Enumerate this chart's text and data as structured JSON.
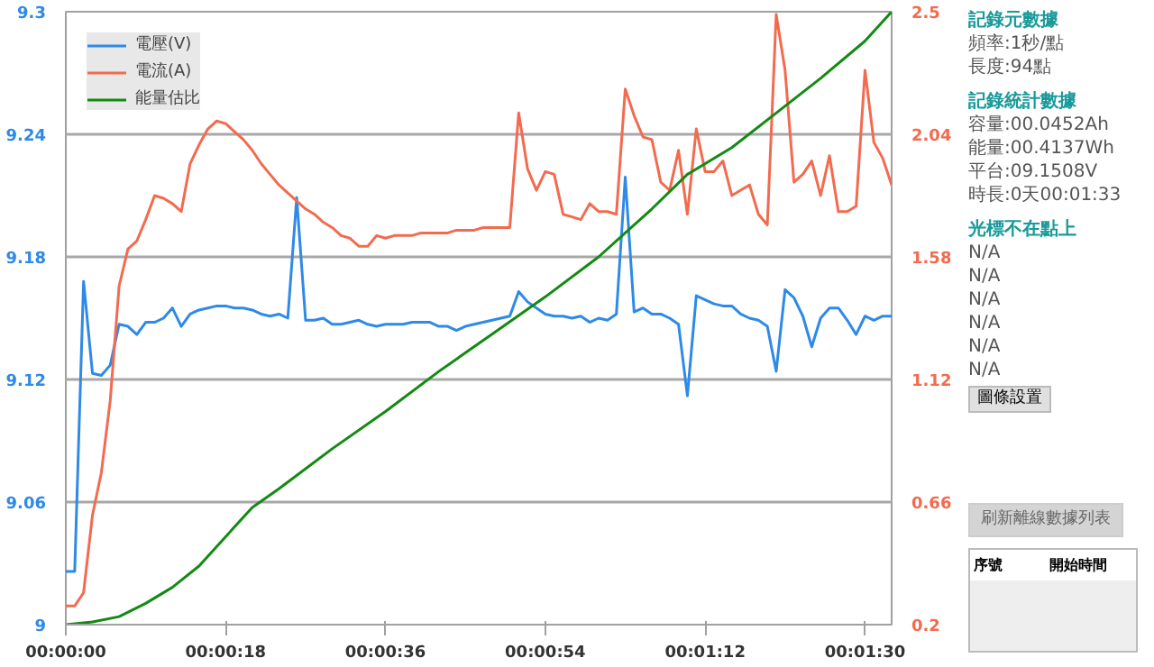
{
  "chart_data": {
    "type": "line",
    "x": [
      0,
      1,
      2,
      3,
      4,
      5,
      6,
      7,
      8,
      9,
      10,
      11,
      12,
      13,
      14,
      15,
      16,
      17,
      18,
      19,
      20,
      21,
      22,
      23,
      24,
      25,
      26,
      27,
      28,
      29,
      30,
      31,
      32,
      33,
      34,
      35,
      36,
      37,
      38,
      39,
      40,
      41,
      42,
      43,
      44,
      45,
      46,
      47,
      48,
      49,
      50,
      51,
      52,
      53,
      54,
      55,
      56,
      57,
      58,
      59,
      60,
      61,
      62,
      63,
      64,
      65,
      66,
      67,
      68,
      69,
      70,
      71,
      72,
      73,
      74,
      75,
      76,
      77,
      78,
      79,
      80,
      81,
      82,
      83,
      84,
      85,
      86,
      87,
      88,
      89,
      90,
      91,
      92,
      93
    ],
    "series": [
      {
        "name": "電壓(V)",
        "color": "#2e8ae6",
        "values": [
          9.026,
          9.026,
          9.168,
          9.123,
          9.122,
          9.127,
          9.147,
          9.146,
          9.142,
          9.148,
          9.148,
          9.15,
          9.155,
          9.146,
          9.152,
          9.154,
          9.155,
          9.156,
          9.156,
          9.155,
          9.155,
          9.154,
          9.152,
          9.151,
          9.152,
          9.15,
          9.209,
          9.149,
          9.149,
          9.15,
          9.147,
          9.147,
          9.148,
          9.149,
          9.147,
          9.146,
          9.147,
          9.147,
          9.147,
          9.148,
          9.148,
          9.148,
          9.146,
          9.146,
          9.144,
          9.146,
          9.147,
          9.148,
          9.149,
          9.15,
          9.151,
          9.163,
          9.158,
          9.155,
          9.152,
          9.151,
          9.151,
          9.15,
          9.151,
          9.148,
          9.15,
          9.149,
          9.152,
          9.219,
          9.153,
          9.155,
          9.152,
          9.152,
          9.15,
          9.147,
          9.112,
          9.161,
          9.159,
          9.157,
          9.156,
          9.156,
          9.152,
          9.15,
          9.149,
          9.146,
          9.124,
          9.164,
          9.16,
          9.151,
          9.136,
          9.15,
          9.155,
          9.155,
          9.149,
          9.142,
          9.151,
          9.149,
          9.151,
          9.151
        ]
      },
      {
        "name": "電流(A)",
        "color": "#f26b4f",
        "axis": "y2",
        "values": [
          0.27,
          0.27,
          0.32,
          0.61,
          0.77,
          1.04,
          1.47,
          1.61,
          1.64,
          1.72,
          1.81,
          1.8,
          1.78,
          1.75,
          1.93,
          2.0,
          2.06,
          2.09,
          2.08,
          2.05,
          2.02,
          1.98,
          1.93,
          1.89,
          1.85,
          1.82,
          1.79,
          1.76,
          1.74,
          1.71,
          1.69,
          1.66,
          1.65,
          1.62,
          1.62,
          1.66,
          1.65,
          1.66,
          1.66,
          1.66,
          1.67,
          1.67,
          1.67,
          1.67,
          1.68,
          1.68,
          1.68,
          1.69,
          1.69,
          1.69,
          1.69,
          2.12,
          1.91,
          1.83,
          1.9,
          1.89,
          1.74,
          1.73,
          1.72,
          1.78,
          1.75,
          1.75,
          1.74,
          2.21,
          2.11,
          2.03,
          2.02,
          1.86,
          1.83,
          1.98,
          1.74,
          2.06,
          1.9,
          1.9,
          1.94,
          1.81,
          1.83,
          1.85,
          1.74,
          1.7,
          2.49,
          2.28,
          1.86,
          1.89,
          1.94,
          1.81,
          1.96,
          1.75,
          1.75,
          1.77,
          2.28,
          2.01,
          1.95,
          1.85
        ]
      },
      {
        "name": "能量估比",
        "color": "#138a13",
        "axis": "y2",
        "x": [
          0,
          3,
          6,
          9,
          12,
          15,
          18,
          21,
          24,
          30,
          36,
          42,
          48,
          54,
          60,
          63,
          66,
          70,
          75,
          80,
          85,
          90,
          93
        ],
        "values": [
          0.2,
          0.21,
          0.23,
          0.28,
          0.34,
          0.42,
          0.53,
          0.64,
          0.71,
          0.86,
          1.0,
          1.15,
          1.29,
          1.43,
          1.58,
          1.67,
          1.76,
          1.89,
          1.99,
          2.12,
          2.25,
          2.39,
          2.5
        ]
      }
    ],
    "xlim": [
      0,
      93
    ],
    "xticks": [
      {
        "value": 0,
        "label": "00:00:00"
      },
      {
        "value": 18,
        "label": "00:00:18"
      },
      {
        "value": 36,
        "label": "00:00:36"
      },
      {
        "value": 54,
        "label": "00:00:54"
      },
      {
        "value": 72,
        "label": "00:01:12"
      },
      {
        "value": 90,
        "label": "00:01:30"
      }
    ],
    "ylim": [
      9,
      9.3
    ],
    "yticks": [
      9,
      9.06,
      9.12,
      9.18,
      9.24,
      9.3
    ],
    "y2lim": [
      0.2,
      2.5
    ],
    "y2ticks": [
      0.2,
      0.66,
      1.12,
      1.58,
      2.04,
      2.5
    ],
    "grid": "y",
    "legend": "top left",
    "annotations": [
      "記錄元數據",
      "頻率:1秒/點",
      "長度:94點",
      "記錄統計數據",
      "容量:00.0452Ah",
      "能量:00.4137Wh",
      "平台:09.1508V",
      "時長:0天00:01:33",
      "光標不在點上",
      "N/A",
      "N/A",
      "N/A",
      "N/A",
      "N/A",
      "N/A",
      "圖條設置",
      "刷新離線數據列表",
      "序號",
      "開始時間"
    ]
  }
}
